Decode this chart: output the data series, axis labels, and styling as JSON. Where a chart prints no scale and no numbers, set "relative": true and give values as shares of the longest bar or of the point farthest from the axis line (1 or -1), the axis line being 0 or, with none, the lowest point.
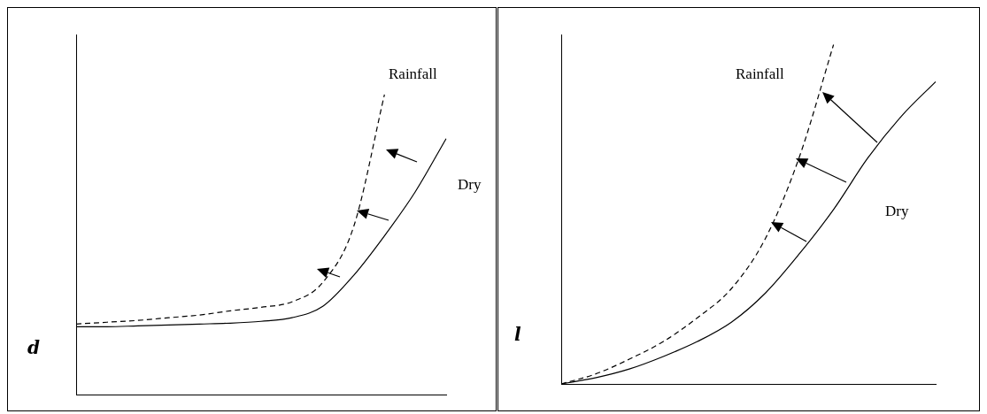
{
  "chart_data": [
    {
      "type": "line",
      "ylabel": "d",
      "relative": true,
      "legend": false,
      "grid": false,
      "marker": "none",
      "categories": [
        null,
        null,
        null,
        null,
        null,
        null,
        null,
        null,
        null,
        null,
        null,
        null,
        null
      ],
      "series": [
        {
          "name": "Rainfall",
          "color": "#000000",
          "line_style": "dashed",
          "values": [
            0.235,
            0.241,
            0.247,
            0.256,
            0.265,
            0.279,
            0.291,
            0.309,
            0.374,
            0.559,
            1.0,
            null,
            null
          ]
        },
        {
          "name": "Dry",
          "color": "#000000",
          "line_style": "solid",
          "values": [
            0.226,
            0.226,
            0.229,
            0.232,
            0.235,
            0.238,
            0.244,
            0.256,
            0.294,
            0.397,
            0.529,
            0.676,
            0.853
          ]
        }
      ]
    },
    {
      "type": "line",
      "ylabel": "l",
      "relative": true,
      "legend": false,
      "grid": false,
      "marker": "none",
      "categories": [
        null,
        null,
        null,
        null,
        null,
        null,
        null,
        null,
        null,
        null,
        null,
        null
      ],
      "series": [
        {
          "name": "Rainfall",
          "color": "#000000",
          "line_style": "dashed",
          "values": [
            0,
            0.029,
            0.073,
            0.125,
            0.195,
            0.281,
            0.429,
            0.67,
            1.0,
            null,
            null,
            null
          ]
        },
        {
          "name": "Dry",
          "color": "#000000",
          "line_style": "solid",
          "values": [
            0,
            0.018,
            0.044,
            0.081,
            0.125,
            0.182,
            0.268,
            0.384,
            0.514,
            0.665,
            0.79,
            0.891
          ]
        }
      ]
    }
  ]
}
